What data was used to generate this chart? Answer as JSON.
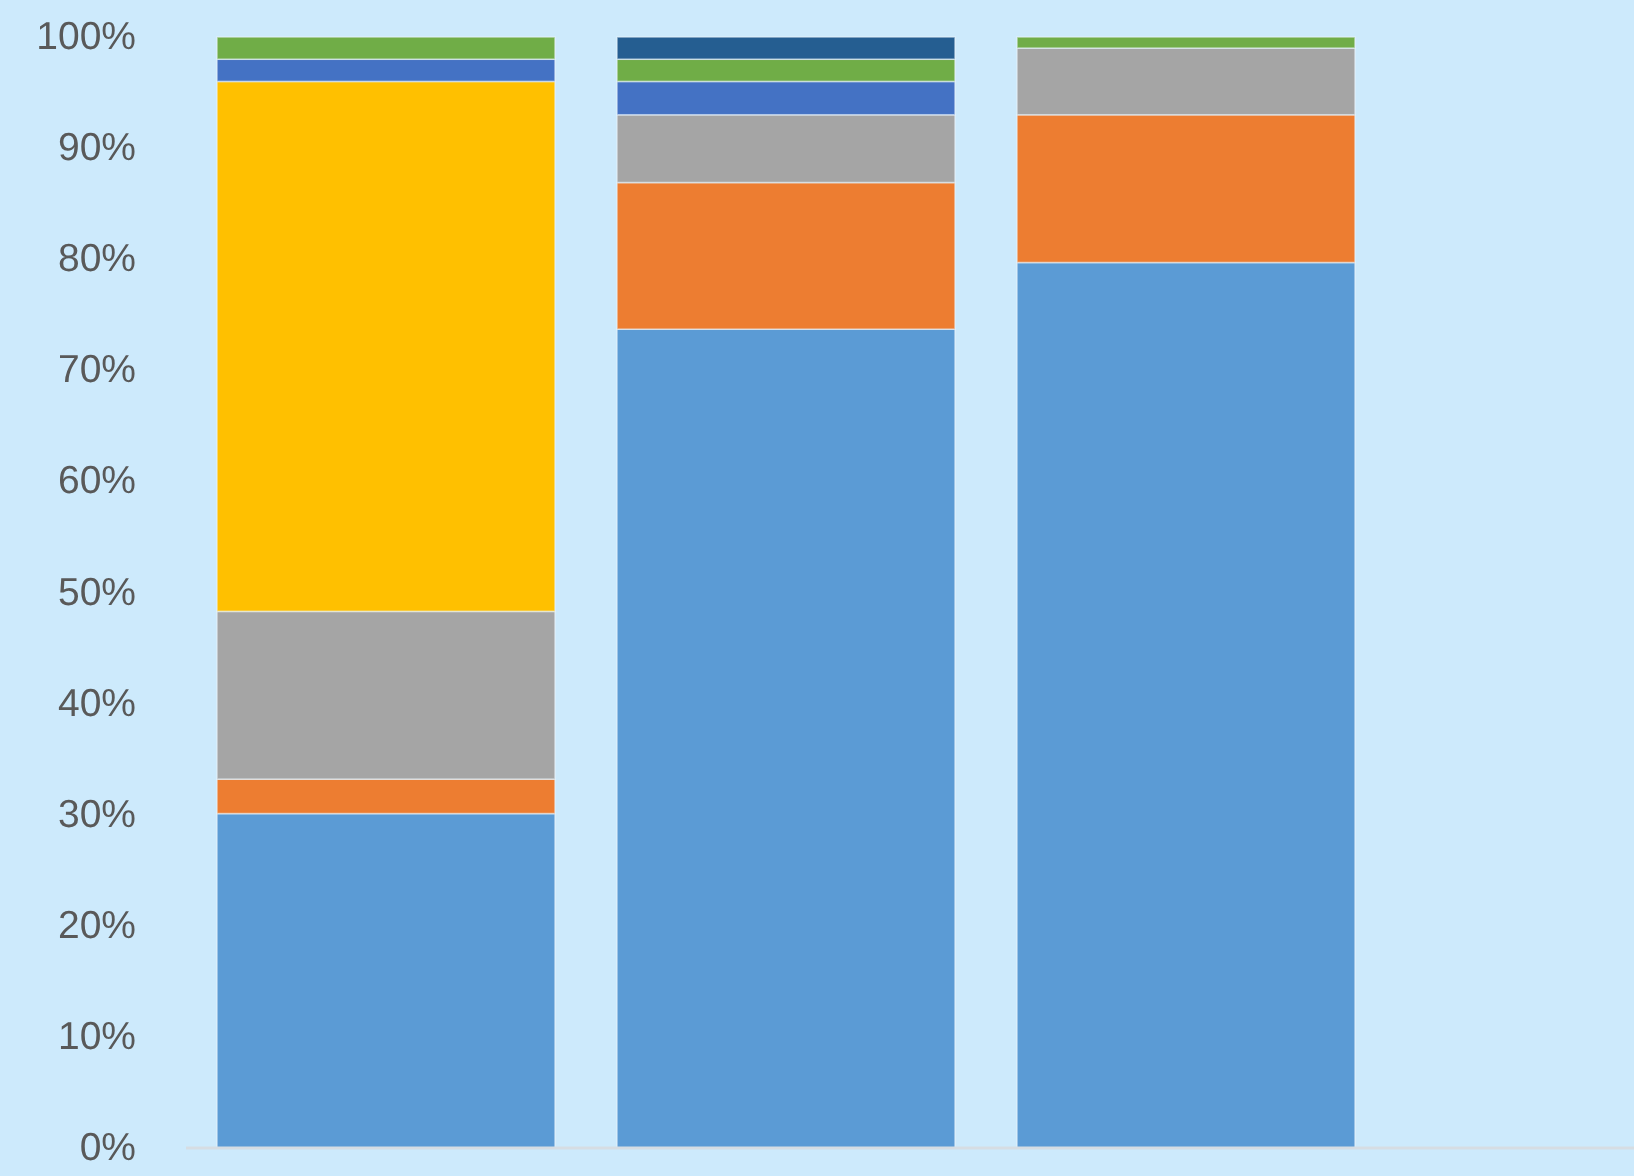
{
  "chart_data": {
    "type": "bar",
    "stacked": true,
    "tick_labels": "y",
    "categories": [
      null,
      null,
      null
    ],
    "series": [
      {
        "color": "#5b9bd5",
        "values": [
          30.1,
          73.7,
          79.7
        ]
      },
      {
        "color": "#ed7d31",
        "values": [
          3.1,
          13.2,
          13.3
        ]
      },
      {
        "color": "#a5a5a5",
        "values": [
          15.1,
          6.1,
          6
        ]
      },
      {
        "color": "#ffc000",
        "values": [
          47.7,
          null,
          null
        ]
      },
      {
        "color": "#4472c4",
        "values": [
          2,
          3,
          null
        ]
      },
      {
        "color": "#70ad47",
        "values": [
          2,
          2,
          1
        ]
      },
      {
        "color": "#255e91",
        "values": [
          null,
          2,
          null
        ]
      }
    ],
    "ylim": [
      0,
      100
    ],
    "yticks": [
      {
        "value": 0,
        "label": "0%"
      },
      {
        "value": 10,
        "label": "10%"
      },
      {
        "value": 20,
        "label": "20%"
      },
      {
        "value": 30,
        "label": "30%"
      },
      {
        "value": 40,
        "label": "40%"
      },
      {
        "value": 50,
        "label": "50%"
      },
      {
        "value": 60,
        "label": "60%"
      },
      {
        "value": 70,
        "label": "70%"
      },
      {
        "value": 80,
        "label": "80%"
      },
      {
        "value": 90,
        "label": "90%"
      },
      {
        "value": 100,
        "label": "100%"
      }
    ]
  }
}
